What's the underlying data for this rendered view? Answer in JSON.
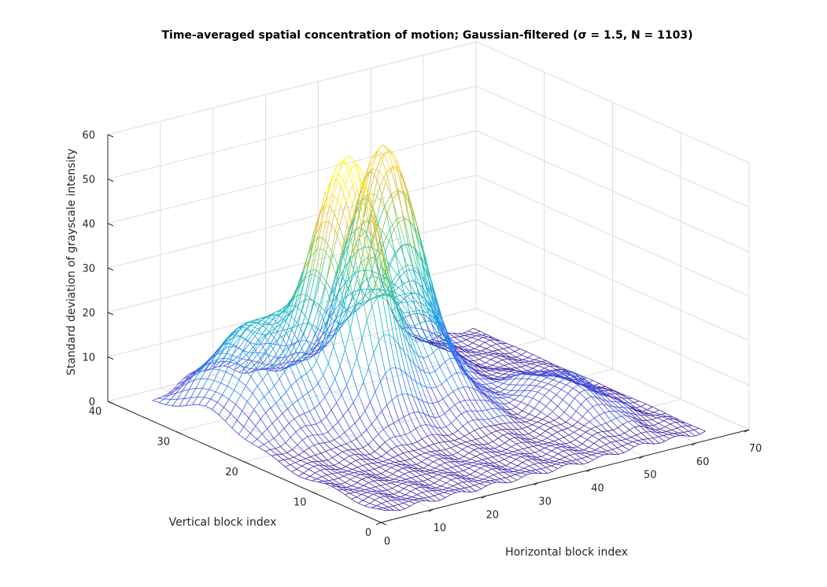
{
  "chart_data": {
    "type": "surface-mesh",
    "title": "Time-averaged spatial concentration of motion; Gaussian-filtered (σ = 1.5, N = 1103)",
    "xlabel": "Horizontal block index",
    "ylabel": "Vertical block index",
    "zlabel": "Standard deviation of grayscale intensity",
    "xlim": [
      0,
      70
    ],
    "ylim": [
      0,
      40
    ],
    "zlim": [
      0,
      60
    ],
    "x_ticks": [
      "0",
      "10",
      "20",
      "30",
      "40",
      "50",
      "60",
      "70"
    ],
    "y_ticks": [
      "0",
      "10",
      "20",
      "30",
      "40"
    ],
    "z_ticks": [
      "0",
      "10",
      "20",
      "30",
      "40",
      "50",
      "60"
    ],
    "grid": true,
    "colormap": [
      "#3e26a8",
      "#4450e0",
      "#2f7cf4",
      "#1aa0de",
      "#14b8bb",
      "#3cc589",
      "#92c84a",
      "#dcb92e",
      "#fbd42c",
      "#f9fb15"
    ],
    "mesh_size": {
      "x": 64,
      "y": 36
    },
    "peaks": [
      {
        "x": 24,
        "y": 23,
        "height": 54
      },
      {
        "x": 41,
        "y": 31,
        "height": 48
      },
      {
        "x": 12,
        "y": 27,
        "height": 22
      },
      {
        "x": 36,
        "y": 22,
        "height": 18
      },
      {
        "x": 52,
        "y": 13,
        "height": 8
      }
    ]
  }
}
